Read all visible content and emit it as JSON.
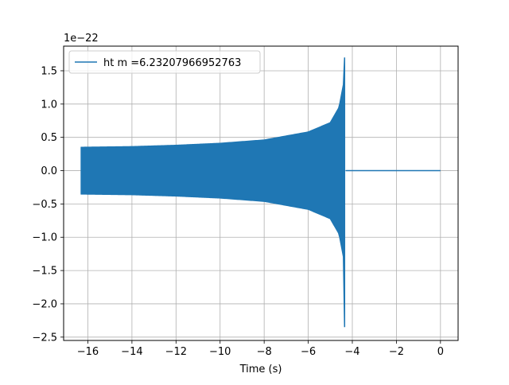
{
  "chart_data": {
    "type": "line",
    "xlabel": "Time (s)",
    "ylabel": "",
    "y_multiplier": "1e−22",
    "xlim": [
      -17.1,
      0.8
    ],
    "ylim": [
      -2.55,
      1.87
    ],
    "x_ticks": [
      -16,
      -14,
      -12,
      -10,
      -8,
      -6,
      -4,
      -2,
      0
    ],
    "x_tick_labels": [
      "−16",
      "−14",
      "−12",
      "−10",
      "−8",
      "−6",
      "−4",
      "−2",
      "0"
    ],
    "y_ticks": [
      -2.5,
      -2.0,
      -1.5,
      -1.0,
      -0.5,
      0.0,
      0.5,
      1.0,
      1.5
    ],
    "y_tick_labels": [
      "−2.5",
      "−2.0",
      "−1.5",
      "−1.0",
      "−0.5",
      "0.0",
      "0.5",
      "1.0",
      "1.5"
    ],
    "grid": true,
    "legend_position": "top-left",
    "series": [
      {
        "name": "ht m =6.23207966952763",
        "color": "#1f77b4",
        "chirp_start": -16.3,
        "merger_time": -4.3,
        "end_time": 0.0,
        "envelope": {
          "x": [
            -16.3,
            -14,
            -12,
            -10,
            -8,
            -6,
            -5,
            -4.6,
            -4.4,
            -4.35
          ],
          "upper": [
            0.35,
            0.36,
            0.38,
            0.41,
            0.46,
            0.58,
            0.72,
            0.95,
            1.3,
            1.7
          ],
          "lower": [
            -0.35,
            -0.36,
            -0.38,
            -0.41,
            -0.46,
            -0.58,
            -0.72,
            -0.95,
            -1.3,
            -2.35
          ]
        }
      }
    ]
  }
}
